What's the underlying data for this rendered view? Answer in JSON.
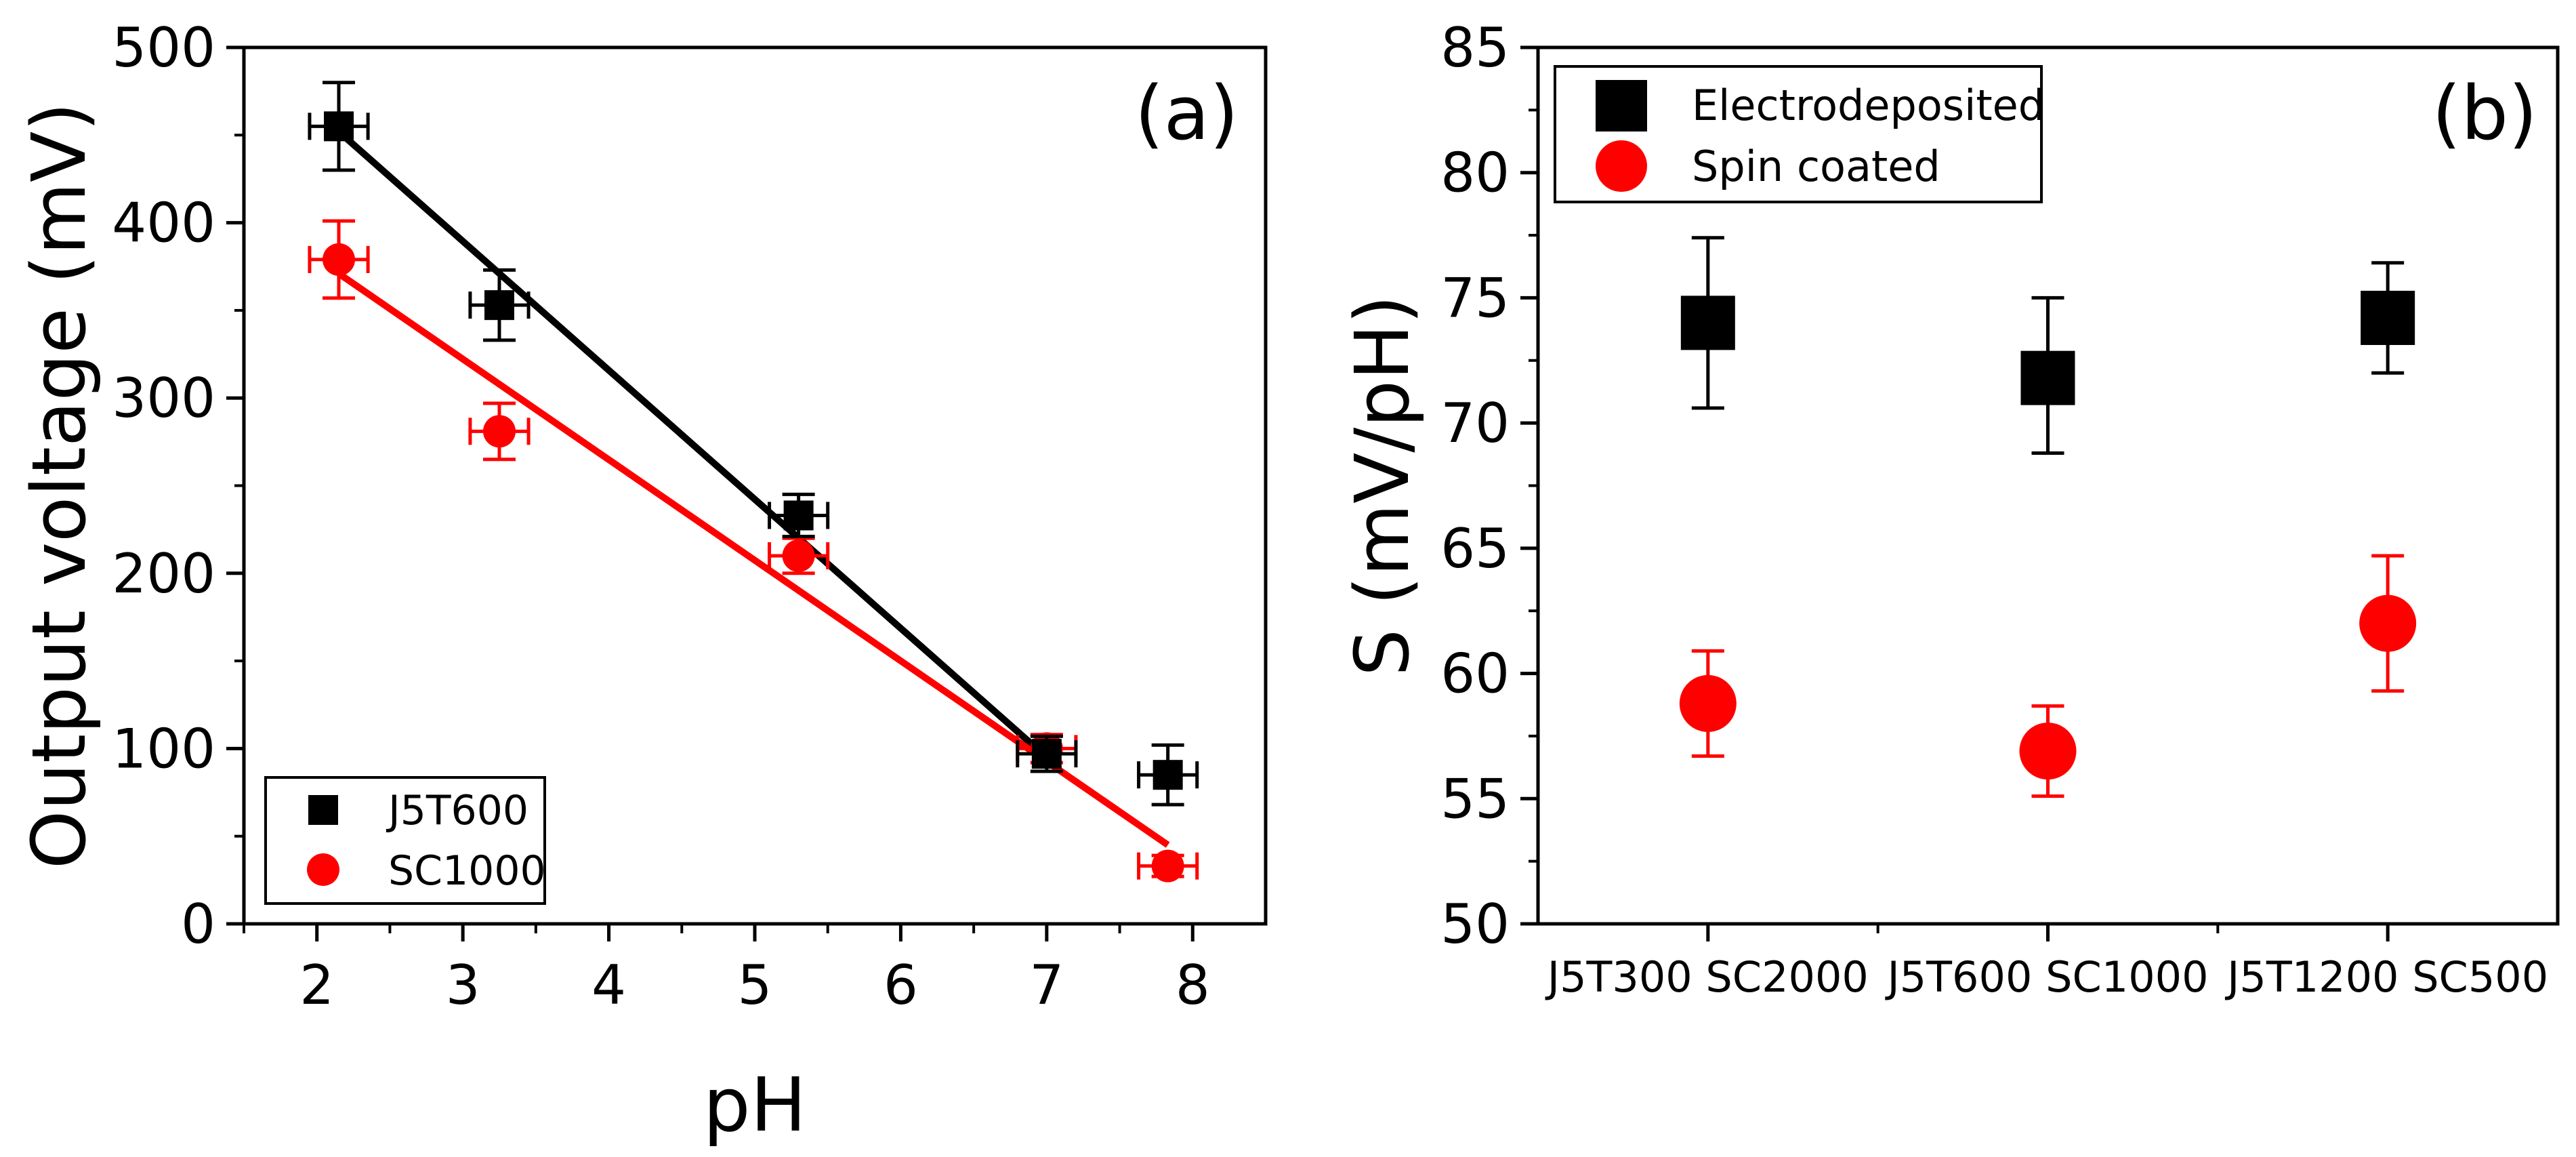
{
  "chart_data": [
    {
      "panel_label": "(a)",
      "type": "scatter",
      "xlabel": "pH",
      "ylabel": "Output voltage (mV)",
      "xlim": [
        1.5,
        8.5
      ],
      "ylim": [
        0,
        500
      ],
      "xticks": [
        "2",
        "3",
        "4",
        "5",
        "6",
        "7",
        "8"
      ],
      "yticks": [
        "0",
        "100",
        "200",
        "300",
        "400",
        "500"
      ],
      "legend_position": "bottom-left",
      "series": [
        {
          "name": "J5T600",
          "color": "#000000",
          "marker": "square",
          "x": [
            2.15,
            3.25,
            5.3,
            7.0,
            7.83
          ],
          "y": [
            455,
            353,
            233,
            97,
            85
          ],
          "yerr": [
            25,
            20,
            12,
            10,
            17
          ],
          "xerr": [
            0.2,
            0.2,
            0.2,
            0.2,
            0.2
          ],
          "fit": {
            "x": [
              2.15,
              7.0
            ],
            "y": [
              452,
              95
            ]
          }
        },
        {
          "name": "SC1000",
          "color": "#ff0000",
          "marker": "circle",
          "x": [
            2.15,
            3.25,
            5.3,
            7.0,
            7.83
          ],
          "y": [
            379,
            281,
            210,
            100,
            33
          ],
          "yerr": [
            22,
            16,
            10,
            8,
            6
          ],
          "xerr": [
            0.2,
            0.2,
            0.2,
            0.2,
            0.2
          ],
          "fit": {
            "x": [
              2.15,
              7.83
            ],
            "y": [
              371,
              45
            ]
          }
        }
      ]
    },
    {
      "panel_label": "(b)",
      "type": "scatter",
      "xlabel": "",
      "ylabel": "S (mV/pH)",
      "ylim": [
        50,
        85
      ],
      "yticks": [
        "50",
        "55",
        "60",
        "65",
        "70",
        "75",
        "80",
        "85"
      ],
      "categories": [
        "J5T300 SC2000",
        "J5T600 SC1000",
        "J5T1200 SC500"
      ],
      "legend_position": "top-left",
      "series": [
        {
          "name": "Electrodeposited",
          "color": "#000000",
          "marker": "square",
          "values": [
            74.0,
            71.8,
            74.2
          ],
          "err_plus": [
            3.4,
            3.2,
            2.2
          ],
          "err_minus": [
            3.4,
            3.0,
            2.2
          ]
        },
        {
          "name": "Spin coated",
          "color": "#ff0000",
          "marker": "circle",
          "values": [
            58.8,
            56.9,
            62.0
          ],
          "err_plus": [
            2.1,
            1.8,
            2.7
          ],
          "err_minus": [
            2.1,
            1.8,
            2.7
          ]
        }
      ]
    }
  ]
}
